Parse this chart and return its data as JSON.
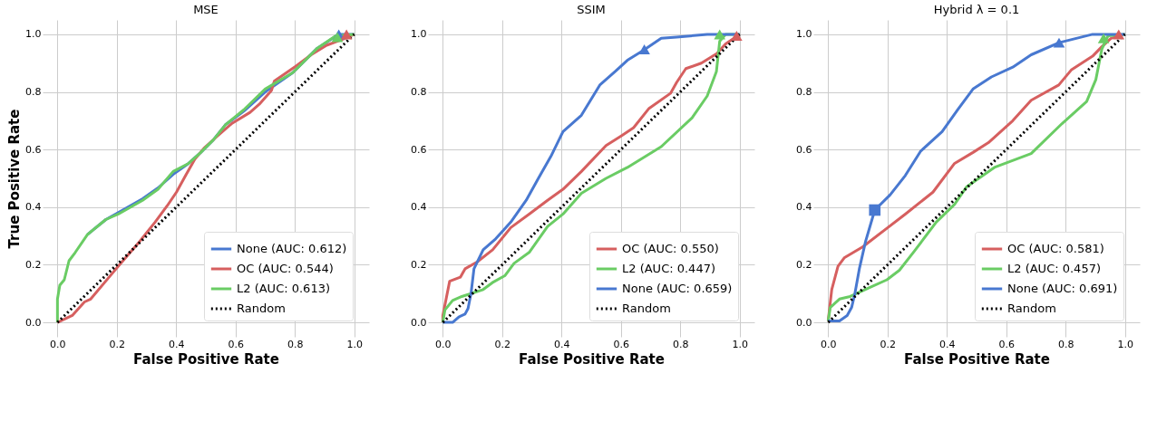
{
  "chart_data": [
    {
      "type": "line",
      "title": "MSE",
      "xlabel": "False Positive Rate",
      "ylabel": "True Positive Rate",
      "xlim": [
        -0.05,
        1.05
      ],
      "ylim": [
        -0.05,
        1.05
      ],
      "xticks": [
        {
          "value": 0,
          "label": "0.0"
        },
        0.2,
        0.4,
        0.6,
        0.8,
        {
          "value": 1,
          "label": "1.0"
        }
      ],
      "yticks": [
        {
          "value": 0,
          "label": "0.0"
        },
        0.2,
        0.4,
        0.6,
        0.8,
        {
          "value": 1,
          "label": "1.0"
        }
      ],
      "grid": true,
      "legend": "bottom right",
      "series": [
        {
          "name": "None (AUC: 0.612)",
          "color": "#4878d0",
          "x": [
            0.101,
            0.163,
            0.205,
            0.287,
            0.339,
            0.39,
            0.442,
            0.483,
            0.525,
            0.566,
            0.628,
            0.7,
            0.793,
            0.876,
            0.948,
            1.0
          ],
          "values": [
            0.305,
            0.357,
            0.381,
            0.429,
            0.467,
            0.514,
            0.552,
            0.59,
            0.633,
            0.686,
            0.733,
            0.8,
            0.867,
            0.952,
            1.0,
            1.0
          ]
        },
        {
          "name": "OC (AUC: 0.544)",
          "color": "#d65f5f",
          "x": [
            0,
            0.05,
            0.091,
            0.112,
            0.174,
            0.205,
            0.277,
            0.329,
            0.37,
            0.401,
            0.432,
            0.463,
            0.494,
            0.535,
            0.587,
            0.649,
            0.68,
            0.721,
            0.731,
            0.804,
            0.855,
            0.907,
            0.969,
            1.0
          ],
          "values": [
            0,
            0.024,
            0.071,
            0.081,
            0.157,
            0.195,
            0.281,
            0.348,
            0.405,
            0.452,
            0.51,
            0.567,
            0.605,
            0.643,
            0.69,
            0.729,
            0.757,
            0.805,
            0.838,
            0.89,
            0.929,
            0.962,
            0.986,
            1.0
          ]
        },
        {
          "name": "L2 (AUC: 0.613)",
          "color": "#6acc64",
          "x": [
            0,
            0,
            0.008,
            0.023,
            0.039,
            0.06,
            0.101,
            0.163,
            0.205,
            0.287,
            0.339,
            0.39,
            0.442,
            0.483,
            0.525,
            0.566,
            0.628,
            0.7,
            0.793,
            0.876,
            0.938,
            1.0
          ],
          "values": [
            0,
            0.081,
            0.129,
            0.148,
            0.214,
            0.243,
            0.305,
            0.357,
            0.376,
            0.424,
            0.462,
            0.524,
            0.552,
            0.59,
            0.633,
            0.686,
            0.738,
            0.81,
            0.867,
            0.952,
            0.995,
            1.0
          ]
        },
        {
          "name": "Random",
          "color": "#000000",
          "line_style": "dotted",
          "x": [
            0,
            1
          ],
          "values": [
            0,
            1
          ]
        },
        {
          "type": "scatter",
          "marker": "triangle",
          "color": "#4878d0",
          "x": [
            0.948
          ],
          "values": [
            1.0
          ]
        },
        {
          "type": "scatter",
          "marker": "triangle",
          "color": "#d65f5f",
          "x": [
            0.974
          ],
          "values": [
            1.0
          ]
        },
        {
          "type": "scatter",
          "marker": "triangle",
          "color": "#6acc64",
          "x": [
            0.943
          ],
          "values": [
            0.99
          ]
        }
      ]
    },
    {
      "type": "line",
      "title": "SSIM",
      "xlabel": "False Positive Rate",
      "xlim": [
        -0.05,
        1.05
      ],
      "ylim": [
        -0.05,
        1.05
      ],
      "xticks": [
        {
          "value": 0,
          "label": "0.0"
        },
        0.2,
        0.4,
        0.6,
        0.8,
        {
          "value": 1,
          "label": "1.0"
        }
      ],
      "yticks": [
        {
          "value": 0,
          "label": "0.0"
        },
        0.2,
        0.4,
        0.6,
        0.8,
        {
          "value": 1,
          "label": "1.0"
        }
      ],
      "grid": true,
      "legend": "bottom right",
      "series": [
        {
          "name": "OC (AUC: 0.550)",
          "color": "#d65f5f",
          "x": [
            0,
            0,
            0.023,
            0.059,
            0.075,
            0.116,
            0.168,
            0.229,
            0.291,
            0.353,
            0.405,
            0.467,
            0.55,
            0.602,
            0.643,
            0.695,
            0.767,
            0.788,
            0.819,
            0.871,
            0.923,
            0.953,
            1.0
          ],
          "values": [
            0,
            0.024,
            0.143,
            0.157,
            0.186,
            0.21,
            0.252,
            0.329,
            0.376,
            0.424,
            0.462,
            0.524,
            0.614,
            0.648,
            0.676,
            0.743,
            0.795,
            0.833,
            0.881,
            0.9,
            0.933,
            0.967,
            1.0
          ]
        },
        {
          "name": "L2 (AUC: 0.447)",
          "color": "#6acc64",
          "x": [
            0,
            0.007,
            0.033,
            0.064,
            0.095,
            0.136,
            0.167,
            0.209,
            0.24,
            0.291,
            0.353,
            0.405,
            0.467,
            0.55,
            0.622,
            0.736,
            0.84,
            0.891,
            0.922,
            0.933,
            0.953,
            1.0
          ],
          "values": [
            0,
            0.043,
            0.076,
            0.09,
            0.1,
            0.114,
            0.138,
            0.162,
            0.205,
            0.243,
            0.333,
            0.376,
            0.448,
            0.5,
            0.538,
            0.61,
            0.71,
            0.786,
            0.871,
            0.976,
            1.0,
            1.0
          ]
        },
        {
          "name": "None (AUC: 0.659)",
          "color": "#4878d0",
          "x": [
            0,
            0.033,
            0.054,
            0.075,
            0.085,
            0.095,
            0.105,
            0.136,
            0.178,
            0.229,
            0.281,
            0.322,
            0.364,
            0.405,
            0.467,
            0.529,
            0.581,
            0.622,
            0.674,
            0.736,
            0.788,
            0.891,
            1.0
          ],
          "values": [
            0,
            0,
            0.019,
            0.029,
            0.048,
            0.1,
            0.186,
            0.252,
            0.29,
            0.348,
            0.424,
            0.5,
            0.576,
            0.662,
            0.719,
            0.824,
            0.871,
            0.91,
            0.943,
            0.986,
            0.99,
            1.0,
            1.0
          ]
        },
        {
          "name": "Random",
          "color": "#000000",
          "line_style": "dotted",
          "x": [
            0,
            1
          ],
          "values": [
            0,
            1
          ]
        },
        {
          "type": "scatter",
          "marker": "triangle",
          "color": "#d65f5f",
          "x": [
            0.99
          ],
          "values": [
            0.995
          ]
        },
        {
          "type": "scatter",
          "marker": "triangle",
          "color": "#6acc64",
          "x": [
            0.933
          ],
          "values": [
            1.0
          ]
        },
        {
          "type": "scatter",
          "marker": "triangle",
          "color": "#4878d0",
          "x": [
            0.679
          ],
          "values": [
            0.948
          ]
        }
      ]
    },
    {
      "type": "line",
      "title": "Hybrid λ = 0.1",
      "xlabel": "False Positive Rate",
      "xlim": [
        -0.05,
        1.05
      ],
      "ylim": [
        -0.05,
        1.05
      ],
      "xticks": [
        {
          "value": 0,
          "label": "0.0"
        },
        0.2,
        0.4,
        0.6,
        0.8,
        {
          "value": 1,
          "label": "1.0"
        }
      ],
      "yticks": [
        {
          "value": 0,
          "label": "0.0"
        },
        0.2,
        0.4,
        0.6,
        0.8,
        {
          "value": 1,
          "label": "1.0"
        }
      ],
      "grid": true,
      "legend": "bottom right",
      "series": [
        {
          "name": "OC (AUC: 0.581)",
          "color": "#d65f5f",
          "x": [
            0,
            0.012,
            0.033,
            0.054,
            0.116,
            0.188,
            0.26,
            0.353,
            0.426,
            0.488,
            0.54,
            0.622,
            0.684,
            0.777,
            0.819,
            0.891,
            0.922,
            0.953,
            1.0
          ],
          "values": [
            0.005,
            0.114,
            0.195,
            0.224,
            0.262,
            0.319,
            0.376,
            0.452,
            0.552,
            0.59,
            0.624,
            0.7,
            0.771,
            0.824,
            0.876,
            0.924,
            0.957,
            0.986,
            1.0
          ]
        },
        {
          "name": "L2 (AUC: 0.457)",
          "color": "#6acc64",
          "x": [
            0,
            0.007,
            0.038,
            0.074,
            0.136,
            0.198,
            0.24,
            0.291,
            0.364,
            0.426,
            0.467,
            0.56,
            0.684,
            0.788,
            0.871,
            0.902,
            0.922,
            0.943,
            1.0
          ],
          "values": [
            0.005,
            0.052,
            0.081,
            0.09,
            0.119,
            0.148,
            0.181,
            0.248,
            0.348,
            0.41,
            0.471,
            0.538,
            0.586,
            0.69,
            0.767,
            0.843,
            0.948,
            0.995,
            1.0
          ]
        },
        {
          "name": "None (AUC: 0.691)",
          "color": "#4878d0",
          "x": [
            0,
            0.038,
            0.064,
            0.079,
            0.09,
            0.105,
            0.126,
            0.157,
            0.209,
            0.26,
            0.312,
            0.384,
            0.436,
            0.488,
            0.55,
            0.622,
            0.684,
            0.778,
            0.891,
            1.0
          ],
          "values": [
            0.005,
            0.005,
            0.024,
            0.052,
            0.1,
            0.186,
            0.281,
            0.39,
            0.443,
            0.51,
            0.595,
            0.662,
            0.738,
            0.81,
            0.852,
            0.886,
            0.929,
            0.971,
            1.0,
            1.0
          ]
        },
        {
          "name": "Random",
          "color": "#000000",
          "line_style": "dotted",
          "x": [
            0,
            1
          ],
          "values": [
            0,
            1
          ]
        },
        {
          "type": "scatter",
          "marker": "triangle",
          "color": "#d65f5f",
          "x": [
            0.979
          ],
          "values": [
            1.0
          ]
        },
        {
          "type": "scatter",
          "marker": "triangle",
          "color": "#6acc64",
          "x": [
            0.928
          ],
          "values": [
            0.986
          ]
        },
        {
          "type": "scatter",
          "marker": "triangle",
          "color": "#4878d0",
          "x": [
            0.778
          ],
          "values": [
            0.971
          ]
        },
        {
          "type": "scatter",
          "marker": "square",
          "color": "#4878d0",
          "x": [
            0.157
          ],
          "values": [
            0.39
          ]
        }
      ]
    }
  ]
}
